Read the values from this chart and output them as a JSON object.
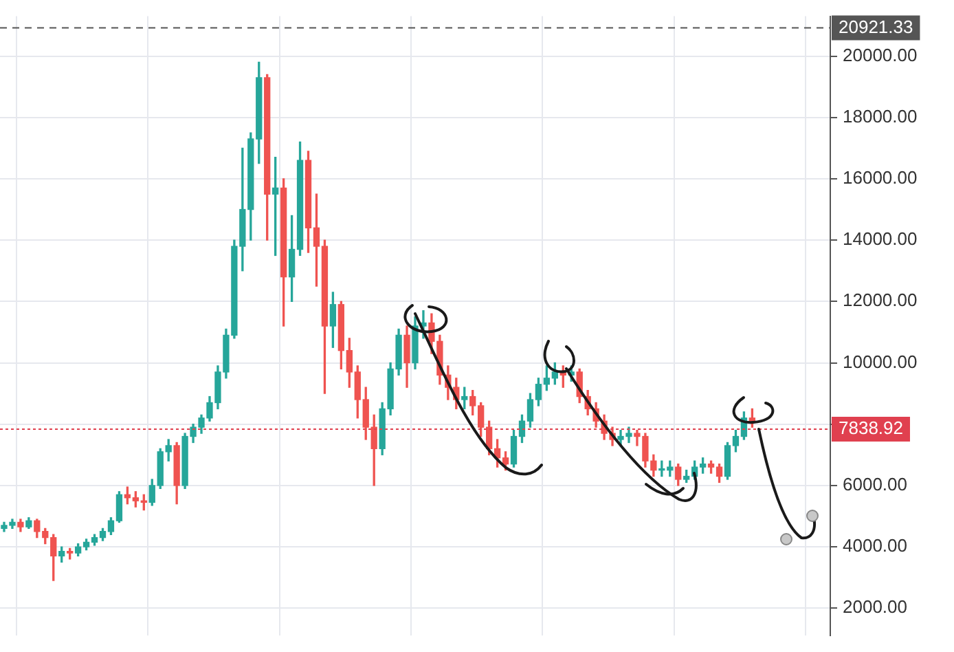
{
  "chart_data": {
    "type": "candlestick",
    "categories": [
      null,
      null,
      null,
      null,
      null,
      null,
      null,
      null,
      null,
      null,
      null,
      null,
      null,
      null,
      null,
      null,
      null,
      null,
      null,
      null,
      null,
      null,
      null,
      null,
      null,
      null,
      null,
      null,
      null,
      null,
      null,
      null,
      null,
      null,
      null,
      null,
      null,
      null,
      null,
      null,
      null,
      null,
      null,
      null,
      null,
      null,
      null,
      null,
      null,
      null,
      null,
      null,
      null,
      null,
      null,
      null,
      null,
      null,
      null,
      null,
      null,
      null,
      null,
      null,
      null,
      null,
      null,
      null,
      null,
      null,
      null,
      null,
      null,
      null,
      null,
      null,
      null,
      null,
      null,
      null,
      null,
      null,
      null,
      null,
      null,
      null,
      null,
      null,
      null,
      null,
      null,
      null,
      null,
      null,
      null,
      null,
      null,
      null,
      null,
      null,
      null
    ],
    "ohlc": [
      [
        4600,
        4800,
        4500,
        4700
      ],
      [
        4700,
        4900,
        4600,
        4800
      ],
      [
        4800,
        4900,
        4500,
        4650
      ],
      [
        4650,
        4950,
        4600,
        4850
      ],
      [
        4850,
        4900,
        4300,
        4500
      ],
      [
        4500,
        4600,
        4100,
        4300
      ],
      [
        4300,
        4400,
        2900,
        3700
      ],
      [
        3700,
        4000,
        3500,
        3850
      ],
      [
        3850,
        3950,
        3600,
        3800
      ],
      [
        3800,
        4100,
        3700,
        4000
      ],
      [
        4000,
        4250,
        3900,
        4150
      ],
      [
        4150,
        4400,
        4050,
        4300
      ],
      [
        4300,
        4600,
        4200,
        4500
      ],
      [
        4500,
        4950,
        4400,
        4850
      ],
      [
        4850,
        5800,
        4800,
        5700
      ],
      [
        5700,
        5950,
        5400,
        5600
      ],
      [
        5600,
        5800,
        5300,
        5500
      ],
      [
        5500,
        5700,
        5200,
        5450
      ],
      [
        5450,
        6200,
        5350,
        6000
      ],
      [
        6000,
        7200,
        5900,
        7100
      ],
      [
        7100,
        7500,
        6800,
        7300
      ],
      [
        7300,
        7400,
        5400,
        6000
      ],
      [
        6000,
        7700,
        5900,
        7600
      ],
      [
        7600,
        8000,
        7400,
        7900
      ],
      [
        7900,
        8300,
        7700,
        8200
      ],
      [
        8200,
        8900,
        8100,
        8700
      ],
      [
        8700,
        9900,
        8500,
        9700
      ],
      [
        9700,
        11100,
        9500,
        10900
      ],
      [
        10900,
        14000,
        10800,
        13800
      ],
      [
        13800,
        17000,
        13000,
        15000
      ],
      [
        15000,
        17500,
        14000,
        17300
      ],
      [
        17300,
        19800,
        16500,
        19300
      ],
      [
        19300,
        19400,
        14000,
        15500
      ],
      [
        15500,
        16700,
        13500,
        15700
      ],
      [
        15700,
        16000,
        11200,
        12800
      ],
      [
        12800,
        14800,
        12000,
        13700
      ],
      [
        13700,
        17200,
        13500,
        16600
      ],
      [
        16600,
        16900,
        13600,
        14400
      ],
      [
        14400,
        15500,
        12500,
        13800
      ],
      [
        13800,
        14000,
        9000,
        11200
      ],
      [
        11200,
        12300,
        10500,
        11900
      ],
      [
        11900,
        12000,
        9800,
        10400
      ],
      [
        10400,
        10800,
        9200,
        9700
      ],
      [
        9700,
        9900,
        8200,
        8800
      ],
      [
        8800,
        9200,
        7500,
        7900
      ],
      [
        7900,
        8300,
        6000,
        7200
      ],
      [
        7200,
        8700,
        7000,
        8500
      ],
      [
        8500,
        10000,
        8300,
        9800
      ],
      [
        9800,
        11100,
        9600,
        10900
      ],
      [
        10900,
        11200,
        9200,
        10000
      ],
      [
        10000,
        11500,
        9800,
        11200
      ],
      [
        11200,
        11700,
        10800,
        11300
      ],
      [
        11300,
        11600,
        10300,
        10700
      ],
      [
        10700,
        10900,
        9300,
        9600
      ],
      [
        9600,
        9900,
        8800,
        9200
      ],
      [
        9200,
        9500,
        8500,
        8800
      ],
      [
        8800,
        9200,
        8500,
        8900
      ],
      [
        8900,
        9100,
        8300,
        8600
      ],
      [
        8600,
        8700,
        7600,
        7900
      ],
      [
        7900,
        8100,
        7000,
        7200
      ],
      [
        7200,
        7500,
        6600,
        6900
      ],
      [
        6900,
        7100,
        6500,
        6700
      ],
      [
        6700,
        7800,
        6600,
        7600
      ],
      [
        7600,
        8300,
        7400,
        8100
      ],
      [
        8100,
        9000,
        7900,
        8800
      ],
      [
        8800,
        9500,
        8600,
        9300
      ],
      [
        9300,
        9900,
        9100,
        9500
      ],
      [
        9500,
        10000,
        9300,
        9700
      ],
      [
        9700,
        9900,
        9200,
        9600
      ],
      [
        9600,
        9900,
        9400,
        9700
      ],
      [
        9700,
        9800,
        8700,
        8900
      ],
      [
        8900,
        9100,
        8300,
        8500
      ],
      [
        8500,
        8700,
        7900,
        8100
      ],
      [
        8100,
        8300,
        7500,
        7700
      ],
      [
        7700,
        7900,
        7300,
        7500
      ],
      [
        7500,
        7800,
        7300,
        7600
      ],
      [
        7600,
        7900,
        7400,
        7700
      ],
      [
        7700,
        7800,
        7300,
        7600
      ],
      [
        7600,
        7700,
        6600,
        6800
      ],
      [
        6800,
        7000,
        6300,
        6500
      ],
      [
        6500,
        6800,
        6300,
        6500
      ],
      [
        6500,
        6800,
        6300,
        6600
      ],
      [
        6600,
        6700,
        6000,
        6200
      ],
      [
        6200,
        6500,
        6100,
        6300
      ],
      [
        6300,
        6800,
        6200,
        6600
      ],
      [
        6600,
        6900,
        6400,
        6700
      ],
      [
        6700,
        6800,
        6400,
        6600
      ],
      [
        6600,
        6700,
        6100,
        6300
      ],
      [
        6300,
        7400,
        6200,
        7300
      ],
      [
        7300,
        7800,
        7100,
        7600
      ],
      [
        7600,
        8400,
        7500,
        8200
      ],
      [
        8200,
        8500,
        7900,
        8100
      ],
      null,
      null,
      null,
      null,
      null,
      null,
      null,
      null,
      null
    ],
    "colors": [
      "#26a69a",
      "#26a69a",
      "#ef5350",
      "#26a69a",
      "#ef5350",
      "#ef5350",
      "#ef5350",
      "#26a69a",
      "#ef5350",
      "#26a69a",
      "#26a69a",
      "#26a69a",
      "#26a69a",
      "#26a69a",
      "#26a69a",
      "#ef5350",
      "#ef5350",
      "#ef5350",
      "#26a69a",
      "#26a69a",
      "#26a69a",
      "#ef5350",
      "#26a69a",
      "#26a69a",
      "#26a69a",
      "#26a69a",
      "#26a69a",
      "#26a69a",
      "#26a69a",
      "#26a69a",
      "#26a69a",
      "#26a69a",
      "#ef5350",
      "#26a69a",
      "#ef5350",
      "#26a69a",
      "#26a69a",
      "#ef5350",
      "#ef5350",
      "#ef5350",
      "#26a69a",
      "#ef5350",
      "#ef5350",
      "#ef5350",
      "#ef5350",
      "#ef5350",
      "#26a69a",
      "#26a69a",
      "#26a69a",
      "#ef5350",
      "#26a69a",
      "#26a69a",
      "#ef5350",
      "#ef5350",
      "#ef5350",
      "#ef5350",
      "#26a69a",
      "#ef5350",
      "#ef5350",
      "#ef5350",
      "#ef5350",
      "#ef5350",
      "#26a69a",
      "#26a69a",
      "#26a69a",
      "#26a69a",
      "#26a69a",
      "#26a69a",
      "#ef5350",
      "#26a69a",
      "#ef5350",
      "#ef5350",
      "#ef5350",
      "#ef5350",
      "#ef5350",
      "#26a69a",
      "#26a69a",
      "#ef5350",
      "#ef5350",
      "#ef5350",
      "#26a69a",
      "#26a69a",
      "#ef5350",
      "#26a69a",
      "#26a69a",
      "#26a69a",
      "#ef5350",
      "#ef5350",
      "#26a69a",
      "#26a69a",
      "#26a69a",
      "#ef5350",
      null,
      null,
      null,
      null,
      null,
      null,
      null,
      null,
      null
    ],
    "ylim": [
      1100,
      21300
    ],
    "yticks": [
      {
        "value": 2000,
        "label": "2000.00"
      },
      {
        "value": 4000,
        "label": "4000.00"
      },
      {
        "value": 6000,
        "label": "6000.00"
      },
      {
        "value": 8000,
        "label": null
      },
      {
        "value": 10000,
        "label": "10000.00"
      },
      {
        "value": 12000,
        "label": "12000.00"
      },
      {
        "value": 14000,
        "label": "14000.00"
      },
      {
        "value": 16000,
        "label": "16000.00"
      },
      {
        "value": 18000,
        "label": "18000.00"
      },
      {
        "value": 20000,
        "label": "20000.00"
      }
    ],
    "ref_lines": [
      {
        "axis": "y",
        "value": 7838.92,
        "label": "7838.92",
        "color": "#e0404f",
        "line_style": "dotted"
      },
      {
        "axis": "y",
        "value": 20921.33,
        "label": "20921.33",
        "color": "#555555",
        "line_style": "dashed"
      }
    ],
    "grid": true,
    "legend": false
  }
}
